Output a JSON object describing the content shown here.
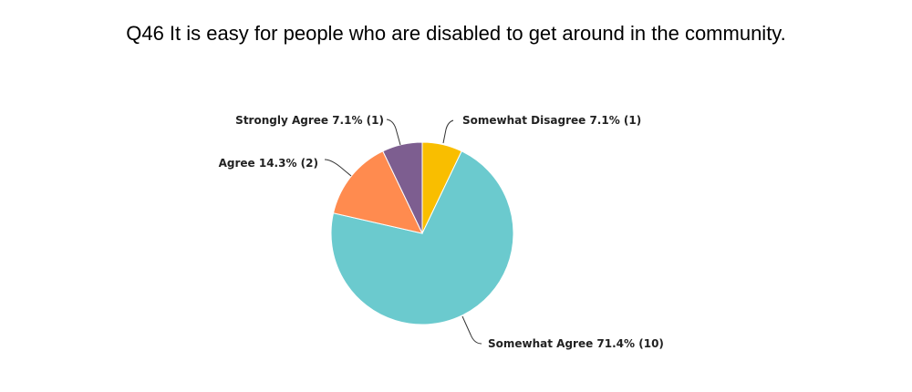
{
  "chart_data": {
    "type": "pie",
    "title": "Q46 It is easy for people who are disabled to get around in the community.",
    "slices": [
      {
        "name": "Somewhat Disagree",
        "percent": 7.1,
        "count": 1,
        "label": "Somewhat Disagree 7.1% (1)",
        "color": "#F9BE00"
      },
      {
        "name": "Somewhat Agree",
        "percent": 71.4,
        "count": 10,
        "label": "Somewhat Agree 71.4% (10)",
        "color": "#6BCACE"
      },
      {
        "name": "Agree",
        "percent": 14.3,
        "count": 2,
        "label": "Agree 14.3% (2)",
        "color": "#FF8B4F"
      },
      {
        "name": "Strongly Agree",
        "percent": 7.1,
        "count": 1,
        "label": "Strongly Agree 7.1% (1)",
        "color": "#7D5E90"
      }
    ]
  }
}
